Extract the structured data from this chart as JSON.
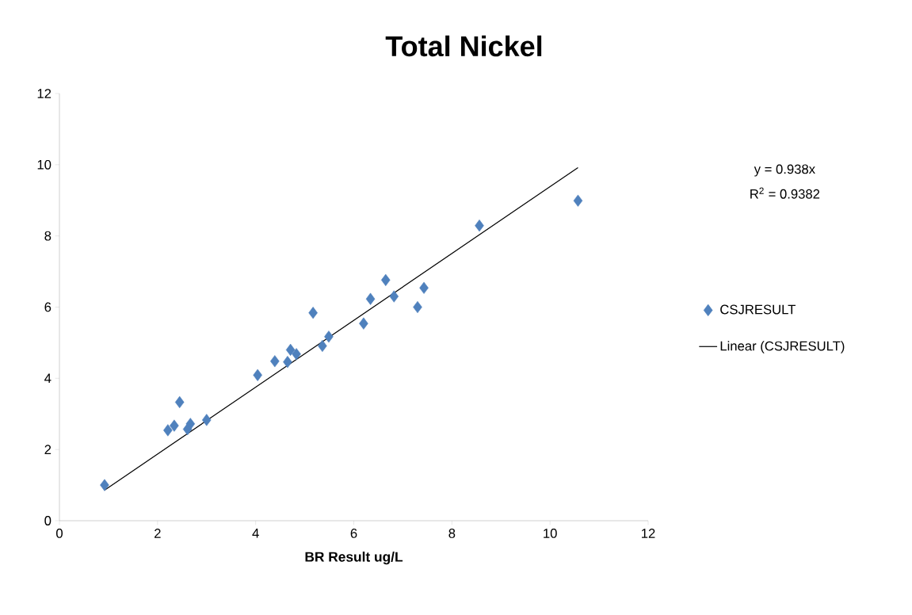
{
  "chart_data": {
    "type": "scatter",
    "title": "Total Nickel",
    "xlabel": "BR Result ug/L",
    "series": [
      {
        "name": "CSJRESULT",
        "color": "#4f81bd",
        "marker": "diamond",
        "x": [
          0.92,
          2.21,
          2.34,
          2.45,
          2.61,
          2.67,
          3.0,
          4.04,
          4.39,
          4.65,
          4.71,
          4.83,
          5.17,
          5.36,
          5.49,
          6.2,
          6.34,
          6.65,
          6.82,
          7.3,
          7.43,
          8.56,
          10.57
        ],
        "values": [
          1.0,
          2.54,
          2.67,
          3.33,
          2.57,
          2.72,
          2.83,
          4.09,
          4.48,
          4.46,
          4.8,
          4.68,
          5.84,
          4.91,
          5.17,
          5.54,
          6.23,
          6.76,
          6.3,
          6.0,
          6.54,
          8.29,
          8.99
        ]
      },
      {
        "name": "Linear (CSJRESULT)",
        "type": "line",
        "color": "#000000",
        "marker": "none",
        "x": [
          0.92,
          10.57
        ],
        "values": [
          0.86,
          9.92
        ]
      }
    ],
    "annotations": [
      "y = 0.938x",
      "R$^{2}$ = 0.9382"
    ],
    "xlim": [
      0,
      12
    ],
    "ylim": [
      0,
      12
    ],
    "xticks": [
      0,
      2,
      4,
      6,
      8,
      10,
      12
    ],
    "yticks": [
      0,
      2,
      4,
      6,
      8,
      10,
      12
    ],
    "grid": false,
    "legend": "right"
  }
}
